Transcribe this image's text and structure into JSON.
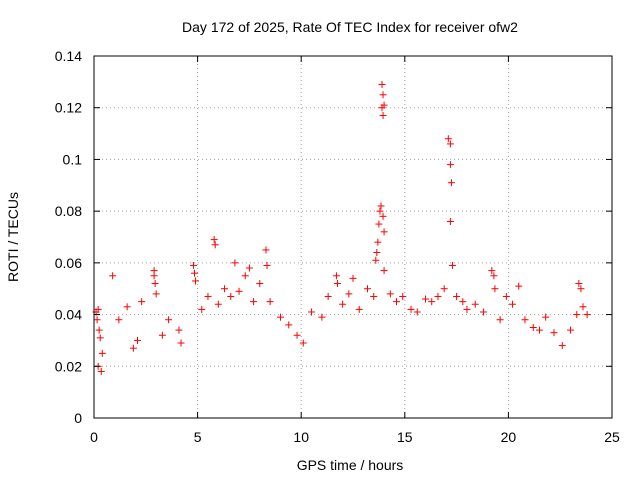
{
  "chart_data": {
    "type": "scatter",
    "title": "Day 172 of 2025, Rate Of TEC Index for receiver ofw2",
    "xlabel": "GPS time / hours",
    "ylabel": "ROTI / TECUs",
    "xlim": [
      0,
      25
    ],
    "ylim": [
      0,
      0.14
    ],
    "xticks": [
      "0",
      "5",
      "10",
      "15",
      "20",
      "25"
    ],
    "yticks": [
      "0",
      "0.02",
      "0.04",
      "0.06",
      "0.08",
      "0.1",
      "0.12",
      "0.14"
    ],
    "grid": true,
    "marker": "plus",
    "series": [
      {
        "color": "#ff0000",
        "x": [
          0.1,
          0.15,
          0.2,
          0.25,
          0.3,
          0.2,
          0.35,
          0.4,
          0.9,
          1.2,
          1.6,
          1.9,
          2.1,
          2.3,
          2.9,
          2.9,
          2.95,
          3.0,
          3.3,
          3.6,
          4.1,
          4.2,
          4.8,
          4.85,
          4.9,
          5.2,
          5.5,
          5.8,
          5.85,
          6.0,
          6.3,
          6.6,
          6.8,
          7.0,
          7.3,
          7.5,
          7.7,
          8.0,
          8.3,
          8.35,
          8.5,
          9.0,
          9.4,
          9.8,
          10.1,
          10.5,
          11.0,
          11.3,
          11.7,
          11.75,
          12.0,
          12.3,
          12.5,
          12.8,
          13.2,
          13.5,
          13.6,
          13.65,
          13.7,
          13.75,
          13.8,
          13.85,
          13.9,
          13.95,
          13.9,
          13.95,
          14.0,
          14.0,
          13.95,
          14.0,
          14.3,
          14.6,
          14.9,
          15.3,
          15.6,
          16.0,
          16.3,
          16.6,
          16.9,
          17.1,
          17.2,
          17.2,
          17.25,
          17.2,
          17.3,
          17.5,
          17.8,
          18.0,
          18.4,
          18.8,
          19.2,
          19.3,
          19.35,
          19.6,
          19.9,
          20.2,
          20.5,
          20.8,
          21.2,
          21.5,
          21.8,
          22.2,
          22.6,
          23.0,
          23.3,
          23.4,
          23.5,
          23.6,
          23.8
        ],
        "y": [
          0.041,
          0.038,
          0.042,
          0.034,
          0.031,
          0.02,
          0.018,
          0.025,
          0.055,
          0.038,
          0.043,
          0.027,
          0.03,
          0.045,
          0.057,
          0.055,
          0.052,
          0.048,
          0.032,
          0.038,
          0.034,
          0.029,
          0.059,
          0.056,
          0.053,
          0.042,
          0.047,
          0.069,
          0.067,
          0.044,
          0.05,
          0.047,
          0.06,
          0.049,
          0.055,
          0.058,
          0.045,
          0.052,
          0.065,
          0.059,
          0.045,
          0.039,
          0.036,
          0.032,
          0.029,
          0.041,
          0.039,
          0.047,
          0.055,
          0.052,
          0.044,
          0.048,
          0.054,
          0.042,
          0.05,
          0.047,
          0.061,
          0.064,
          0.068,
          0.075,
          0.08,
          0.082,
          0.129,
          0.125,
          0.12,
          0.117,
          0.121,
          0.057,
          0.078,
          0.072,
          0.048,
          0.045,
          0.047,
          0.042,
          0.041,
          0.046,
          0.045,
          0.047,
          0.05,
          0.108,
          0.106,
          0.098,
          0.091,
          0.076,
          0.059,
          0.047,
          0.045,
          0.042,
          0.044,
          0.041,
          0.057,
          0.055,
          0.05,
          0.038,
          0.047,
          0.044,
          0.051,
          0.038,
          0.035,
          0.034,
          0.039,
          0.033,
          0.028,
          0.034,
          0.04,
          0.052,
          0.05,
          0.043,
          0.04
        ]
      }
    ]
  }
}
